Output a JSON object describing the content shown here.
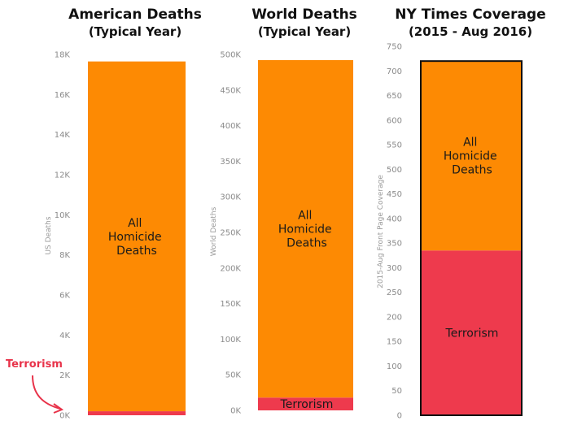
{
  "chart_data": [
    {
      "type": "bar",
      "title": "American Deaths",
      "subtitle": "(Typical Year)",
      "ylabel": "US Deaths",
      "ylim": [
        0,
        18000
      ],
      "yticks": [
        0,
        2000,
        4000,
        6000,
        8000,
        10000,
        12000,
        14000,
        16000,
        18000
      ],
      "ytick_labels": [
        "0K",
        "2K",
        "4K",
        "6K",
        "8K",
        "10K",
        "12K",
        "14K",
        "16K",
        "18K"
      ],
      "categories": [
        "US Deaths"
      ],
      "stacked": true,
      "series": [
        {
          "name": "Terrorism",
          "values": [
            200
          ]
        },
        {
          "name": "All Homicide Deaths",
          "values": [
            17450
          ]
        }
      ],
      "annotation": "Terrorism"
    },
    {
      "type": "bar",
      "title": "World Deaths",
      "subtitle": "(Typical Year)",
      "ylabel": "World Deaths",
      "ylim": [
        0,
        500000
      ],
      "yticks": [
        0,
        50000,
        100000,
        150000,
        200000,
        250000,
        300000,
        350000,
        400000,
        450000,
        500000
      ],
      "ytick_labels": [
        "0K",
        "50K",
        "100K",
        "150K",
        "200K",
        "250K",
        "300K",
        "350K",
        "400K",
        "450K",
        "500K"
      ],
      "categories": [
        "World Deaths"
      ],
      "stacked": true,
      "series": [
        {
          "name": "Terrorism",
          "values": [
            18000
          ]
        },
        {
          "name": "All Homicide Deaths",
          "values": [
            474000
          ]
        }
      ]
    },
    {
      "type": "bar",
      "title": "NY Times Coverage",
      "subtitle": "(2015 - Aug 2016)",
      "ylabel": "2015-Aug Front Page Coverage",
      "ylim": [
        0,
        750
      ],
      "yticks": [
        0,
        50,
        100,
        150,
        200,
        250,
        300,
        350,
        400,
        450,
        500,
        550,
        600,
        650,
        700,
        750
      ],
      "ytick_labels": [
        "0",
        "50",
        "100",
        "150",
        "200",
        "250",
        "300",
        "350",
        "400",
        "450",
        "500",
        "550",
        "600",
        "650",
        "700",
        "750"
      ],
      "categories": [
        "Front Page Coverage"
      ],
      "stacked": true,
      "bar_outline": true,
      "series": [
        {
          "name": "Terrorism",
          "values": [
            335
          ]
        },
        {
          "name": "All Homicide Deaths",
          "values": [
            385
          ]
        }
      ]
    }
  ],
  "colors": {
    "homicide": "#fd8a03",
    "terrorism": "#ee3a4d",
    "outline": "#111111"
  }
}
